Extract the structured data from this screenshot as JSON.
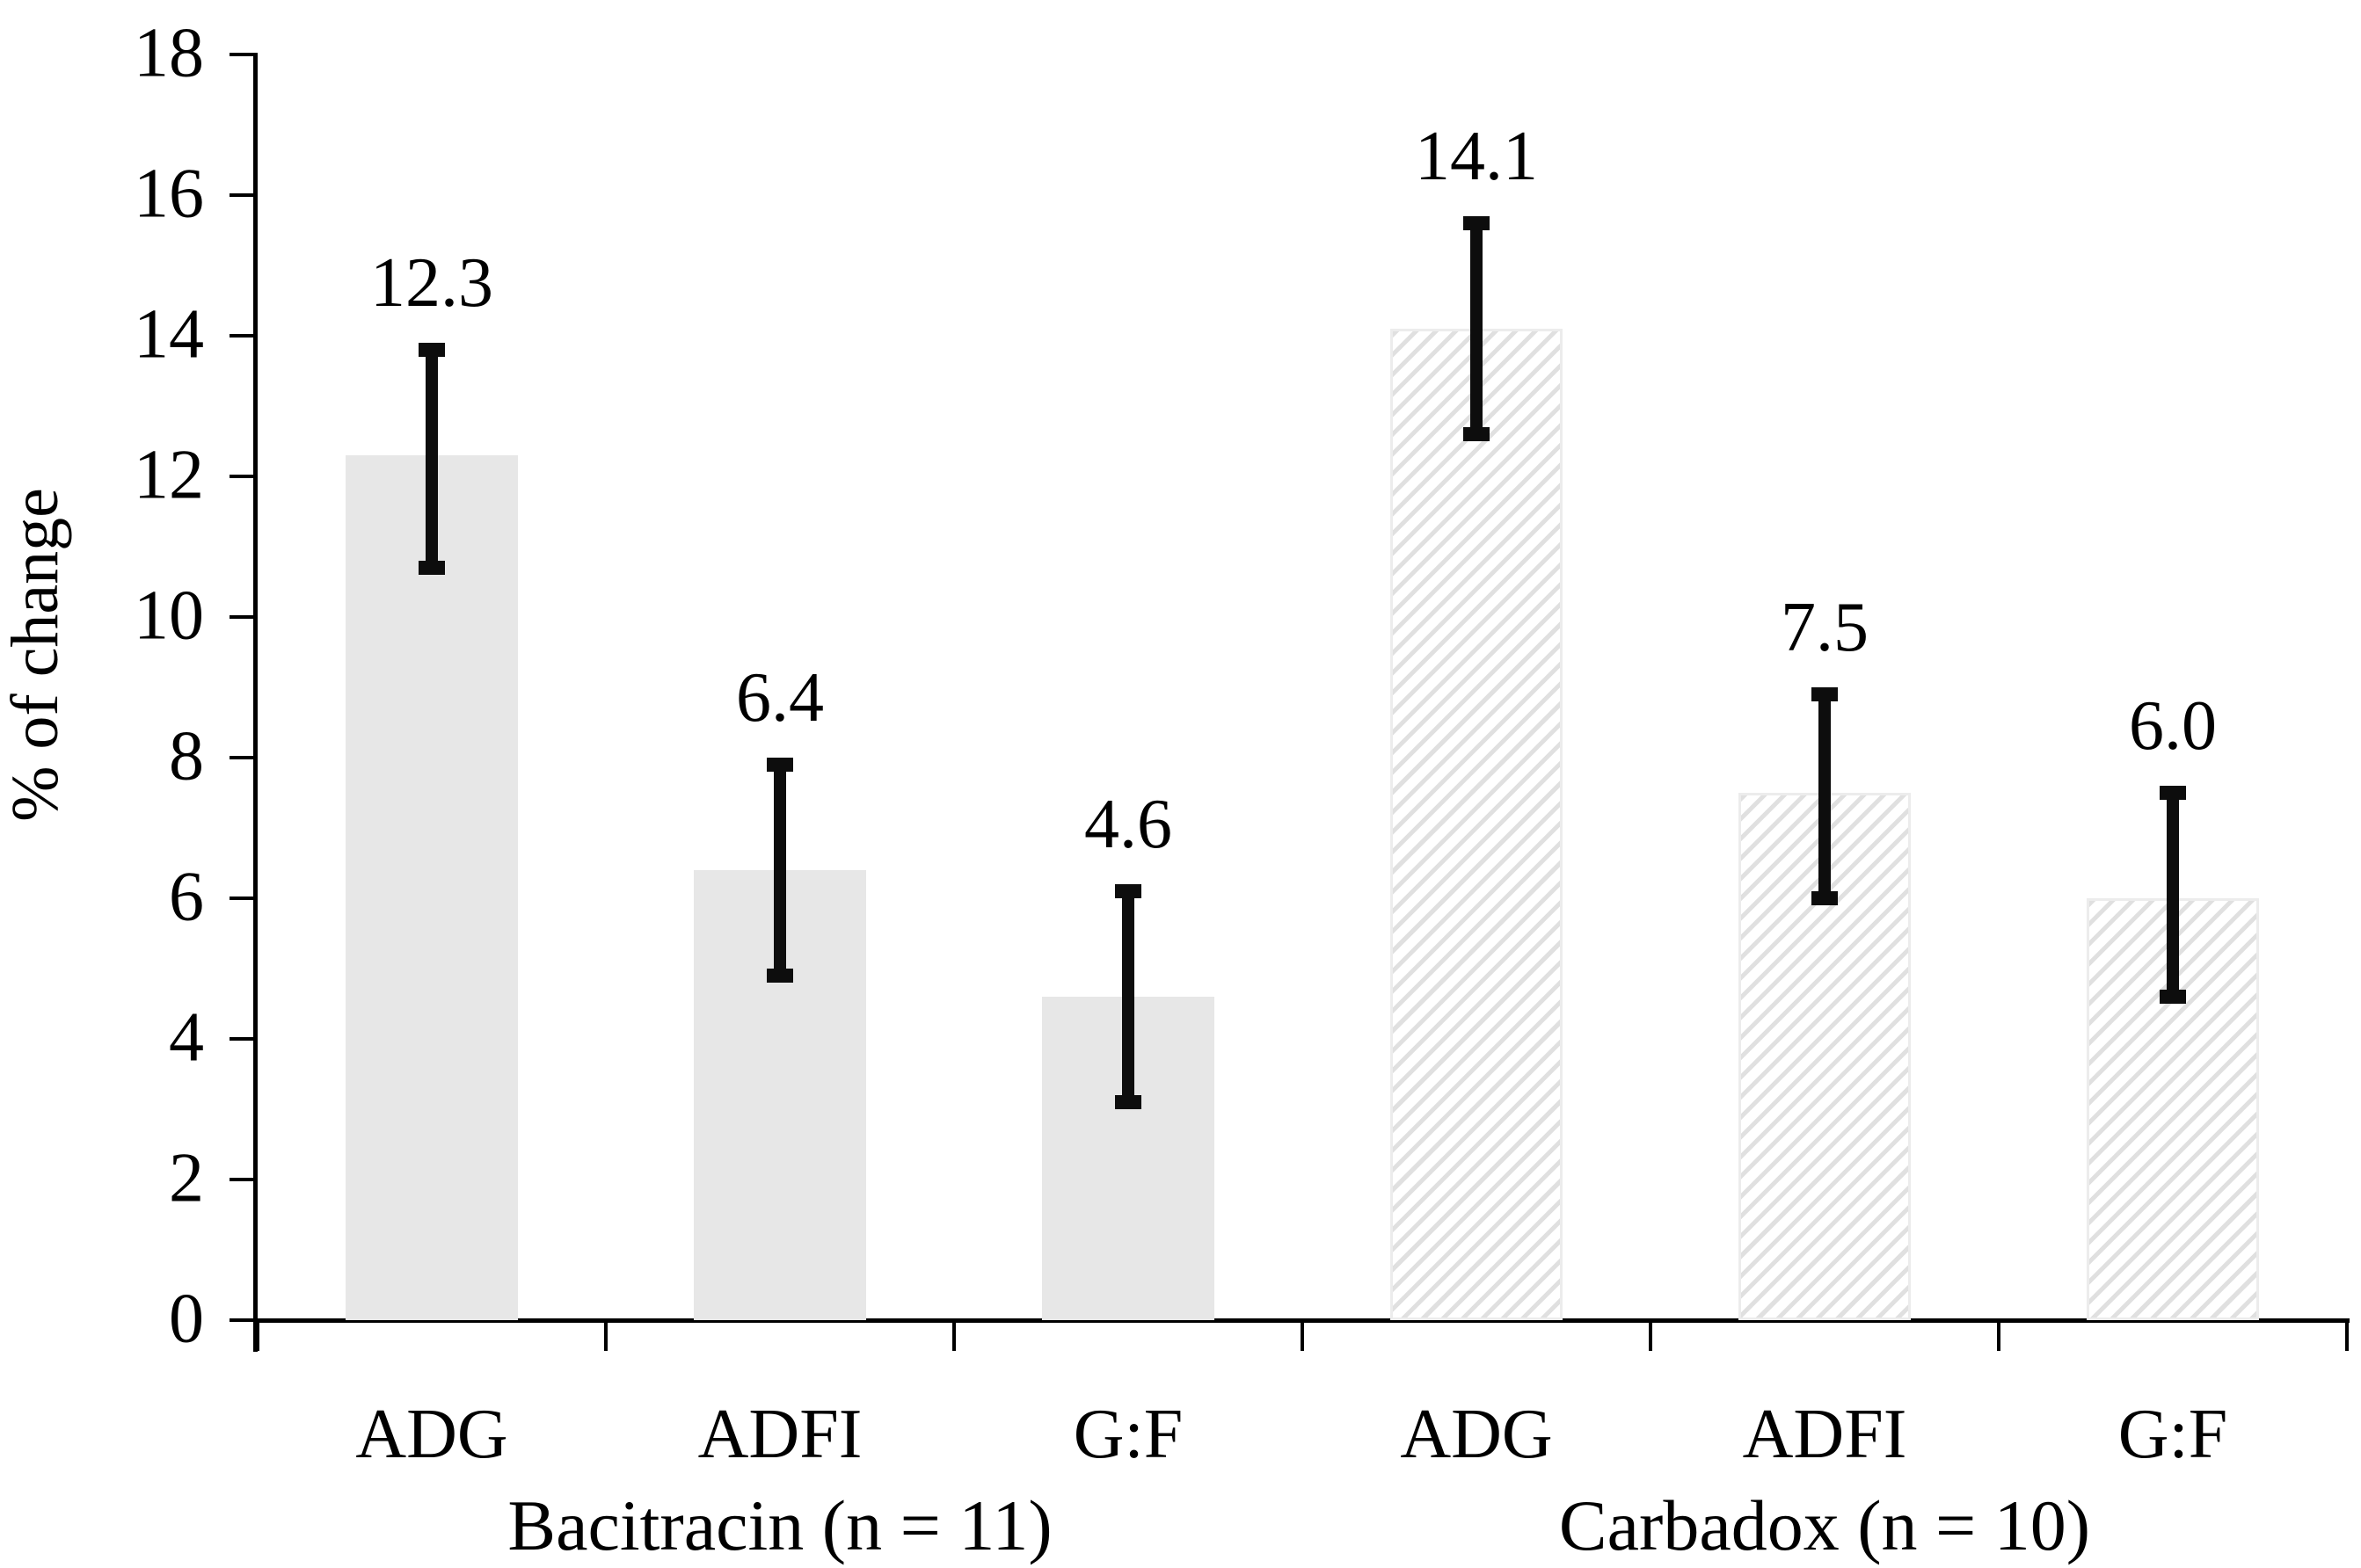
{
  "chart_data": {
    "type": "bar",
    "title": "",
    "xlabel": "",
    "ylabel": "% of change",
    "ylim": [
      0,
      18
    ],
    "ytick_step": 2,
    "yticks": [
      0,
      2,
      4,
      6,
      8,
      10,
      12,
      14,
      16,
      18
    ],
    "grid": false,
    "legend": "none",
    "categories_per_group": [
      "ADG",
      "ADFI",
      "G:F"
    ],
    "groups": [
      {
        "label": "Bacitracin (n = 11)",
        "fill": "solid",
        "bars": [
          {
            "category": "ADG",
            "value": 12.3,
            "label": "12.3",
            "err_low": 10.6,
            "err_high": 13.9
          },
          {
            "category": "ADFI",
            "value": 6.4,
            "label": "6.4",
            "err_low": 4.8,
            "err_high": 8.0
          },
          {
            "category": "G:F",
            "value": 4.6,
            "label": "4.6",
            "err_low": 3.0,
            "err_high": 6.2
          }
        ]
      },
      {
        "label": "Carbadox (n = 10)",
        "fill": "hatched",
        "bars": [
          {
            "category": "ADG",
            "value": 14.1,
            "label": "14.1",
            "err_low": 12.5,
            "err_high": 15.7
          },
          {
            "category": "ADFI",
            "value": 7.5,
            "label": "7.5",
            "err_low": 5.9,
            "err_high": 9.0
          },
          {
            "category": "G:F",
            "value": 6.0,
            "label": "6.0",
            "err_low": 4.5,
            "err_high": 7.6
          }
        ]
      }
    ],
    "colors": {
      "bar_fill": "#e7e7e7",
      "hatch_stripe": "#e0e0e0",
      "hatch_border": "#ececec",
      "axis": "#000000",
      "error_bar": "#0d0d0d",
      "text": "#000000",
      "background": "#ffffff"
    }
  }
}
